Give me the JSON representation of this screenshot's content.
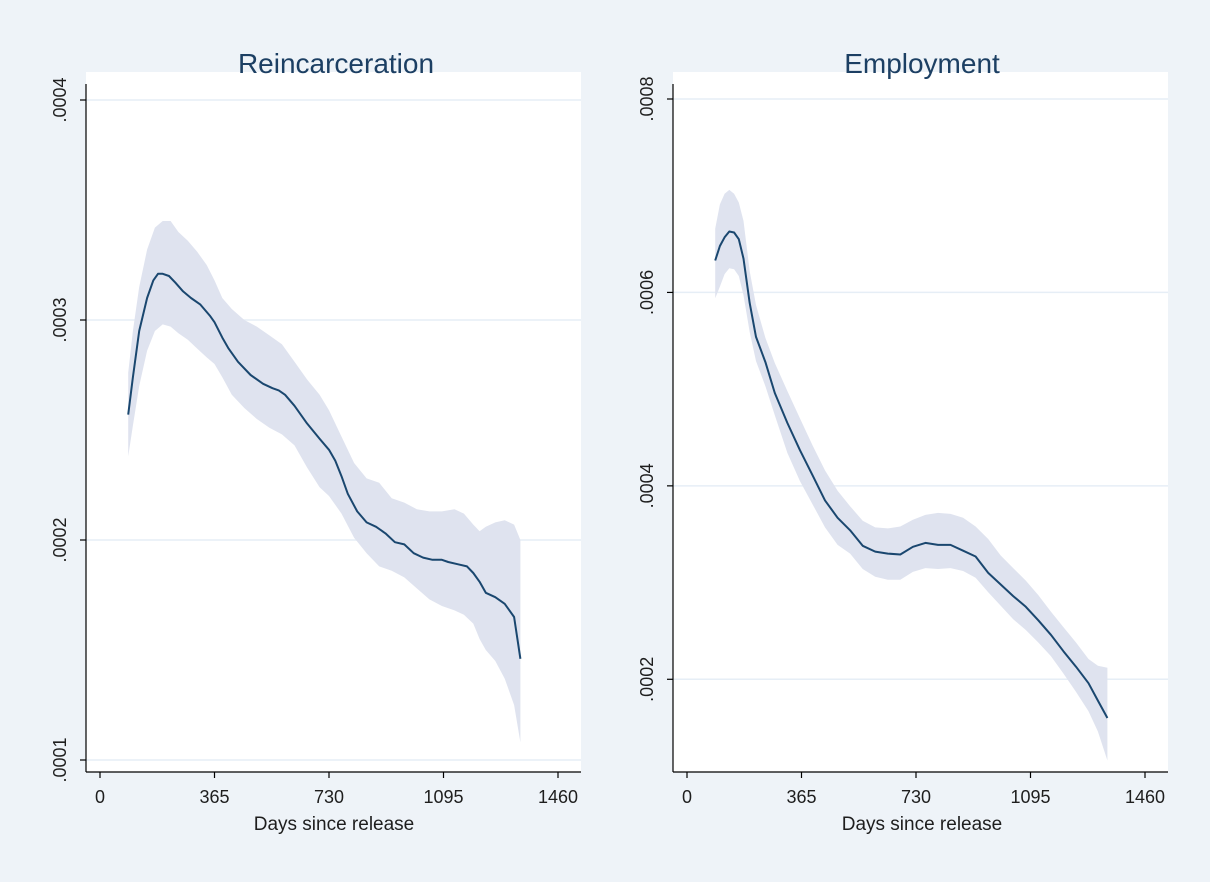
{
  "colors": {
    "outer_background": "#eef3f8",
    "plot_background": "#ffffff",
    "gridline": "#e6eef6",
    "axis": "#000000",
    "line": "#1a476f",
    "band": "#dfe3ef",
    "text": "#1e1e1e",
    "title_text": "#1c3f63"
  },
  "chart_data": [
    {
      "type": "line",
      "title": "Reincarceration",
      "xlabel": "Days since release",
      "ylabel": "",
      "xlim": [
        0,
        1460
      ],
      "ylim": [
        0.0001,
        0.0004
      ],
      "xticks": [
        0,
        365,
        730,
        1095,
        1460
      ],
      "xtick_labels": [
        "0",
        "365",
        "730",
        "1095",
        "1460"
      ],
      "yticks": [
        0.0001,
        0.0002,
        0.0003,
        0.0004
      ],
      "ytick_labels": [
        ".0001",
        ".0002",
        ".0003",
        ".0004"
      ],
      "grid": true,
      "series": [
        {
          "type": "line",
          "x": [
            90,
            105,
            125,
            150,
            170,
            185,
            200,
            220,
            240,
            265,
            290,
            320,
            350,
            365,
            390,
            410,
            440,
            480,
            520,
            550,
            570,
            590,
            620,
            660,
            700,
            730,
            750,
            770,
            790,
            820,
            850,
            880,
            910,
            940,
            970,
            1000,
            1030,
            1060,
            1090,
            1110,
            1140,
            1170,
            1190,
            1210,
            1230,
            1260,
            1290,
            1320,
            1340
          ],
          "y": [
            0.000257,
            0.000274,
            0.000295,
            0.00031,
            0.000318,
            0.000321,
            0.000321,
            0.00032,
            0.000317,
            0.000313,
            0.00031,
            0.000307,
            0.000302,
            0.000299,
            0.000292,
            0.000287,
            0.000281,
            0.000275,
            0.000271,
            0.000269,
            0.000268,
            0.000266,
            0.000261,
            0.000253,
            0.000246,
            0.000241,
            0.000236,
            0.000229,
            0.000221,
            0.000213,
            0.000208,
            0.000206,
            0.000203,
            0.000199,
            0.000198,
            0.000194,
            0.000192,
            0.000191,
            0.000191,
            0.00019,
            0.000189,
            0.000188,
            0.000185,
            0.000181,
            0.000176,
            0.000174,
            0.000171,
            0.000165,
            0.000146
          ]
        },
        {
          "type": "band",
          "x": [
            90,
            105,
            125,
            150,
            175,
            200,
            225,
            250,
            280,
            310,
            340,
            365,
            390,
            420,
            460,
            500,
            540,
            580,
            620,
            660,
            700,
            730,
            770,
            810,
            850,
            890,
            930,
            970,
            1010,
            1050,
            1090,
            1130,
            1160,
            1190,
            1210,
            1230,
            1260,
            1290,
            1320,
            1340
          ],
          "upper": [
            0.000276,
            0.000295,
            0.000315,
            0.000332,
            0.000342,
            0.000345,
            0.000345,
            0.00034,
            0.000336,
            0.000331,
            0.000325,
            0.000318,
            0.00031,
            0.000305,
            0.0003,
            0.000297,
            0.000293,
            0.000289,
            0.000281,
            0.000273,
            0.000266,
            0.000259,
            0.000247,
            0.000235,
            0.000228,
            0.000226,
            0.000219,
            0.000217,
            0.000214,
            0.000213,
            0.000213,
            0.000214,
            0.000212,
            0.000207,
            0.000204,
            0.000206,
            0.000208,
            0.000209,
            0.000207,
            0.0002
          ],
          "lower": [
            0.000238,
            0.000252,
            0.00027,
            0.000286,
            0.000295,
            0.000298,
            0.000297,
            0.000294,
            0.000291,
            0.000287,
            0.000283,
            0.00028,
            0.000274,
            0.000266,
            0.00026,
            0.000255,
            0.000251,
            0.000248,
            0.000243,
            0.000233,
            0.000224,
            0.00022,
            0.000212,
            0.000201,
            0.000194,
            0.000188,
            0.000186,
            0.000183,
            0.000178,
            0.000173,
            0.00017,
            0.000168,
            0.000166,
            0.000162,
            0.000155,
            0.00015,
            0.000145,
            0.000137,
            0.000125,
            0.000108
          ]
        }
      ]
    },
    {
      "type": "line",
      "title": "Employment",
      "xlabel": "Days since release",
      "ylabel": "",
      "xlim": [
        0,
        1460
      ],
      "ylim": [
        0.0001,
        0.0008
      ],
      "xticks": [
        0,
        365,
        730,
        1095,
        1460
      ],
      "xtick_labels": [
        "0",
        "365",
        "730",
        "1095",
        "1460"
      ],
      "yticks": [
        0.0002,
        0.0004,
        0.0006,
        0.0008
      ],
      "ytick_labels": [
        ".0002",
        ".0004",
        ".0006",
        ".0008"
      ],
      "grid": true,
      "series": [
        {
          "type": "line",
          "x": [
            90,
            105,
            120,
            135,
            150,
            165,
            180,
            200,
            220,
            250,
            280,
            320,
            360,
            400,
            440,
            480,
            520,
            560,
            600,
            640,
            680,
            720,
            760,
            800,
            840,
            880,
            920,
            960,
            1000,
            1040,
            1080,
            1120,
            1160,
            1200,
            1240,
            1280,
            1310,
            1340
          ],
          "y": [
            0.000633,
            0.000648,
            0.000657,
            0.000663,
            0.000662,
            0.000655,
            0.000635,
            0.000589,
            0.000554,
            0.000528,
            0.000496,
            0.000465,
            0.000437,
            0.000411,
            0.000385,
            0.000367,
            0.000354,
            0.000338,
            0.000332,
            0.00033,
            0.000329,
            0.000337,
            0.000341,
            0.000339,
            0.000339,
            0.000333,
            0.000327,
            0.00031,
            0.000298,
            0.000286,
            0.000275,
            0.000261,
            0.000246,
            0.000229,
            0.000213,
            0.000196,
            0.000178,
            0.00016
          ]
        },
        {
          "type": "band",
          "x": [
            90,
            105,
            120,
            135,
            150,
            165,
            180,
            200,
            220,
            250,
            280,
            320,
            360,
            400,
            440,
            480,
            520,
            560,
            600,
            640,
            680,
            720,
            760,
            800,
            840,
            880,
            920,
            960,
            1000,
            1040,
            1080,
            1120,
            1160,
            1200,
            1240,
            1280,
            1310,
            1340
          ],
          "upper": [
            0.000666,
            0.000691,
            0.000702,
            0.000706,
            0.000702,
            0.000693,
            0.000674,
            0.000622,
            0.000587,
            0.000553,
            0.000527,
            0.000498,
            0.00047,
            0.000442,
            0.000416,
            0.000395,
            0.000379,
            0.000364,
            0.000357,
            0.000356,
            0.000358,
            0.000365,
            0.00037,
            0.000372,
            0.000371,
            0.000367,
            0.000358,
            0.000345,
            0.000328,
            0.000315,
            0.000302,
            0.000287,
            0.00027,
            0.000254,
            0.000238,
            0.000221,
            0.000214,
            0.000212
          ],
          "lower": [
            0.000594,
            0.000606,
            0.000619,
            0.000625,
            0.000624,
            0.000617,
            0.000597,
            0.000559,
            0.000529,
            0.000503,
            0.000473,
            0.000434,
            0.000405,
            0.000381,
            0.000357,
            0.000339,
            0.00033,
            0.000314,
            0.000306,
            0.000303,
            0.000303,
            0.000311,
            0.000315,
            0.000314,
            0.000315,
            0.000312,
            0.000305,
            0.00029,
            0.000276,
            0.000262,
            0.000251,
            0.000238,
            0.000224,
            0.000206,
            0.000187,
            0.000167,
            0.000146,
            0.000116
          ]
        }
      ]
    }
  ]
}
